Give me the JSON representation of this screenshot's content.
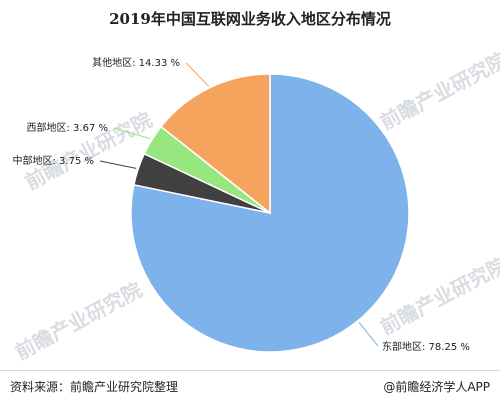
{
  "chart_data": {
    "type": "pie",
    "title": "2019年中国互联网业务收入地区分布情况",
    "categories": [
      "东部地区",
      "中部地区",
      "西部地区",
      "其他地区"
    ],
    "values": [
      78.25,
      3.75,
      3.67,
      14.33
    ],
    "labels": [
      "东部地区: 78.25 %",
      "中部地区: 3.75 %",
      "西部地区: 3.67 %",
      "其他地区: 14.33 %"
    ],
    "colors": [
      "#7eb2ea",
      "#404040",
      "#96e77f",
      "#f6a35d"
    ],
    "unit": "%"
  },
  "watermark": "前瞻产业研究院",
  "footer": {
    "source": "资料来源：前瞻产业研究院整理",
    "brand": "@前瞻经济学人APP"
  }
}
